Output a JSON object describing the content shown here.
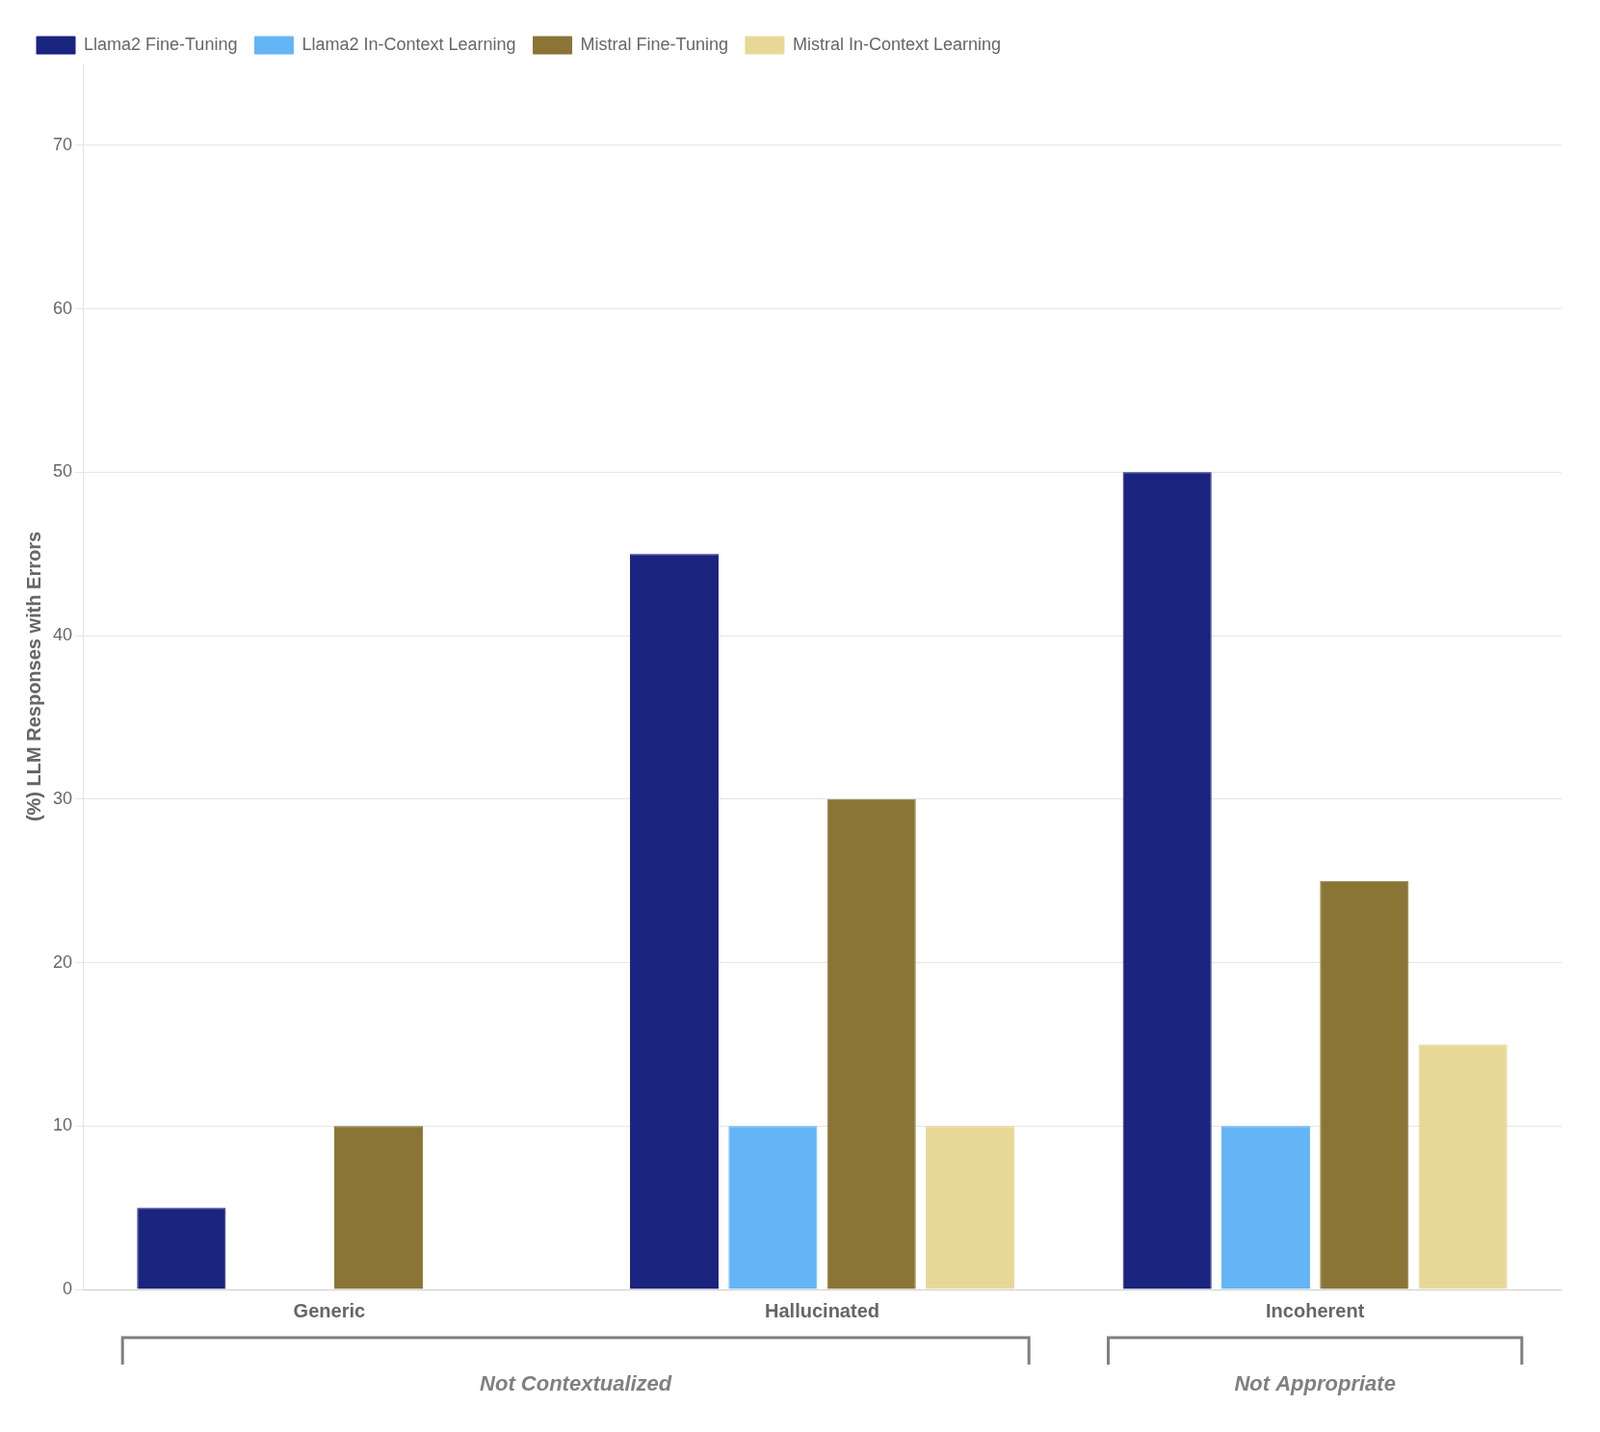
{
  "chart_data": {
    "type": "bar",
    "categories": [
      "Generic",
      "Hallucinated",
      "Incoherent"
    ],
    "series": [
      {
        "name": "Llama2 Fine-Tuning",
        "color": "#1a237e",
        "values": [
          5,
          45,
          50
        ]
      },
      {
        "name": "Llama2 In-Context Learning",
        "color": "#64b5f6",
        "values": [
          0,
          10,
          10
        ]
      },
      {
        "name": "Mistral Fine-Tuning",
        "color": "#8b7536",
        "values": [
          10,
          30,
          25
        ]
      },
      {
        "name": "Mistral In-Context Learning",
        "color": "#e8d898",
        "values": [
          0,
          10,
          15
        ]
      }
    ],
    "ylabel": "(%) LLM Responses with Errors",
    "ylim": [
      0,
      75
    ],
    "yticks": [
      0,
      10,
      20,
      30,
      40,
      50,
      60,
      70
    ],
    "grid": true,
    "legend": "upper left",
    "annotations": [
      {
        "text": "Not Contextualized",
        "categories": [
          "Generic",
          "Hallucinated"
        ]
      },
      {
        "text": "Not Appropriate",
        "categories": [
          "Incoherent"
        ]
      }
    ]
  }
}
